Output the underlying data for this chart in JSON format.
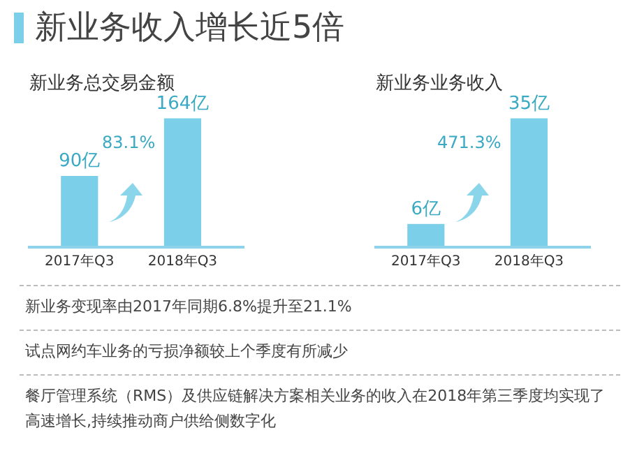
{
  "chart_data": [
    {
      "type": "other",
      "title": "新业务收入增长近5倍",
      "annotations": [
        "新业务变现率由2017年同期6.8%提升至21.1%",
        "试点网约车业务的亏损净额较上个季度有所减少",
        "餐厅管理系统（RMS）及供应链解决方案相关业务的收入在2018年第三季度均实现了高速增长,持续推动商户供给侧数字化"
      ]
    },
    {
      "type": "bar",
      "title": "新业务总交易金额",
      "categories": [
        "2017年Q3",
        "2018年Q3"
      ],
      "values": [
        90,
        164
      ],
      "value_labels": [
        "90亿",
        "164亿"
      ],
      "color": "#7ccfe8",
      "annotations": [
        "83.1%"
      ]
    },
    {
      "type": "bar",
      "title": "新业务业务收入",
      "categories": [
        "2017年Q3",
        "2018年Q3"
      ],
      "values": [
        6,
        35
      ],
      "value_labels": [
        "6亿",
        "35亿"
      ],
      "color": "#7ccfe8",
      "annotations": [
        "471.3%"
      ]
    }
  ]
}
